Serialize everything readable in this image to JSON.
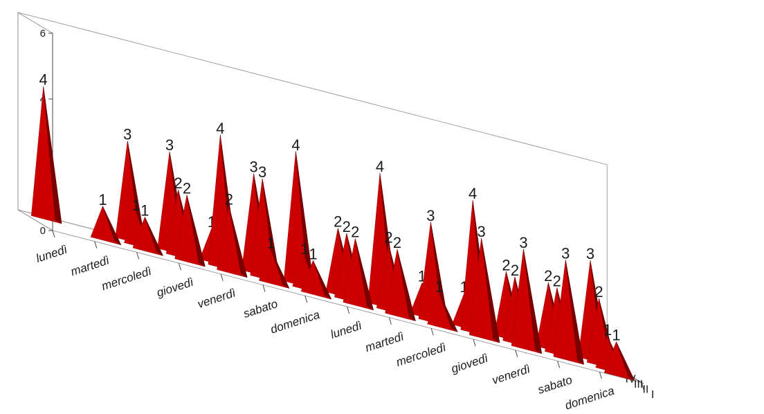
{
  "chart_data": {
    "type": "bar",
    "style": "3d-pyramid",
    "title": "",
    "xlabel": "",
    "ylabel": "",
    "ylim": [
      0,
      6
    ],
    "yticks": [
      0,
      2,
      4,
      6
    ],
    "grid": false,
    "legend": "none",
    "bar_color": "#cc0000",
    "categories": [
      "lunedì",
      "martedì",
      "mercoledì",
      "giovedì",
      "venerdì",
      "sabato",
      "domenica",
      "lunedì",
      "martedì",
      "mercoledì",
      "giovedì",
      "venerdì",
      "sabato",
      "domenica"
    ],
    "series": [
      {
        "name": "I",
        "values": [
          null,
          null,
          null,
          null,
          null,
          null,
          null,
          null,
          null,
          null,
          null,
          null,
          null,
          1
        ]
      },
      {
        "name": "II",
        "values": [
          null,
          1,
          1,
          2,
          2,
          1,
          1,
          2,
          2,
          1,
          3,
          3,
          3,
          1
        ]
      },
      {
        "name": "III",
        "values": [
          null,
          null,
          1,
          2,
          4,
          3,
          1,
          2,
          2,
          3,
          4,
          2,
          2,
          2
        ]
      },
      {
        "name": "IV",
        "values": [
          4,
          null,
          3,
          3,
          1,
          3,
          4,
          2,
          4,
          1,
          1,
          2,
          2,
          3
        ]
      }
    ]
  }
}
